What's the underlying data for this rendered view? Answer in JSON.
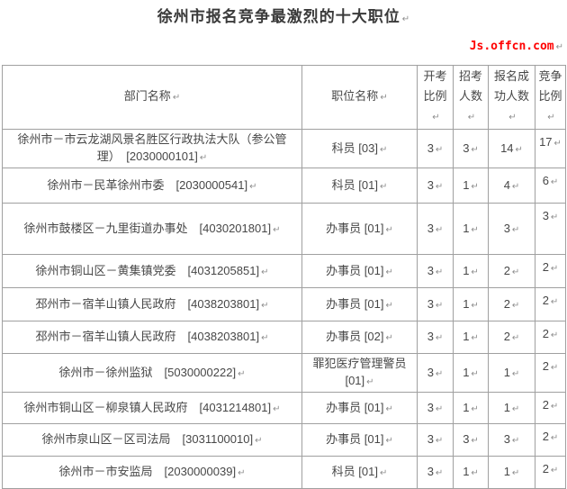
{
  "title": "徐州市报名竞争最激烈的十大职位",
  "watermark": {
    "text": "Js.offcn.com",
    "color": "#ff0000"
  },
  "return_mark": "↵",
  "table": {
    "headers": [
      "部门名称",
      "职位名称",
      "开考\n比例",
      "招考\n人数",
      "报名成\n功人数",
      "竞争\n比例"
    ],
    "rows": [
      [
        "徐州市－市云龙湖风景名胜区行政执法大队（参公管\n理）　[2030000101]",
        "科员 [03]",
        "3",
        "3",
        "14",
        "17"
      ],
      [
        "徐州市－民革徐州市委　[2030000541]",
        "科员 [01]",
        "3",
        "1",
        "4",
        "6"
      ],
      [
        "徐州市鼓楼区－九里街道办事处　[4030201801]",
        "办事员 [01]",
        "3",
        "1",
        "3",
        "3"
      ],
      [
        "徐州市铜山区－黄集镇党委　[4031205851]",
        "办事员 [01]",
        "3",
        "1",
        "2",
        "2"
      ],
      [
        "邳州市－宿羊山镇人民政府　[4038203801]",
        "办事员 [01]",
        "3",
        "1",
        "2",
        "2"
      ],
      [
        "邳州市－宿羊山镇人民政府　[4038203801]",
        "办事员 [02]",
        "3",
        "1",
        "2",
        "2"
      ],
      [
        "徐州市－徐州监狱　[5030000222]",
        "罪犯医疗管理警员\n[01]",
        "3",
        "1",
        "1",
        "2"
      ],
      [
        "徐州市铜山区－柳泉镇人民政府　[4031214801]",
        "办事员 [01]",
        "3",
        "1",
        "1",
        "2"
      ],
      [
        "徐州市泉山区－区司法局　[3031100010]",
        "办事员 [01]",
        "3",
        "3",
        "3",
        "2"
      ],
      [
        "徐州市－市安监局　[2030000039]",
        "科员 [01]",
        "3",
        "1",
        "1",
        "2"
      ]
    ]
  }
}
